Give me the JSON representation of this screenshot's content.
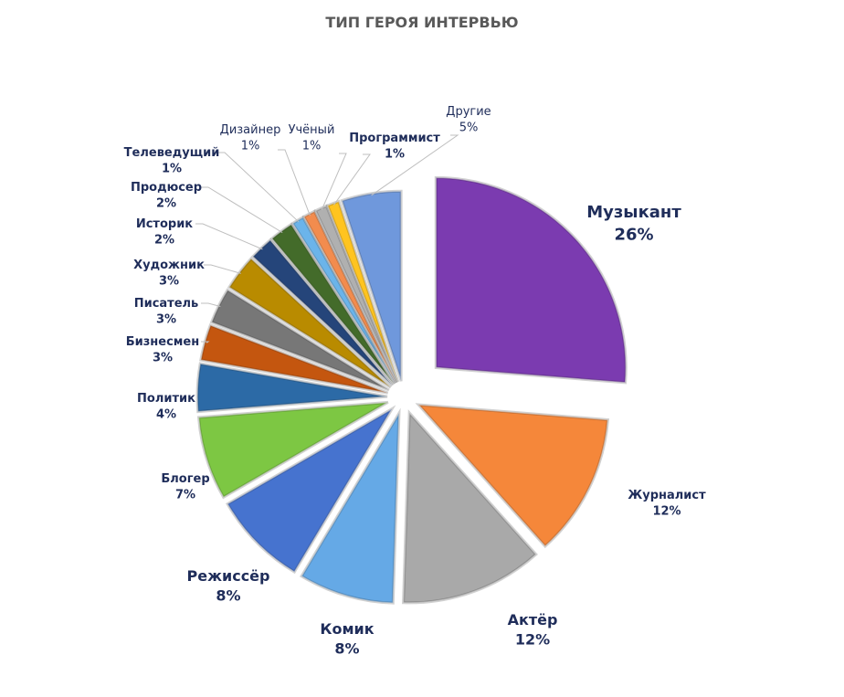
{
  "chart_data": {
    "type": "pie",
    "title": "ТИП ГЕРОЯ ИНТЕРВЬЮ",
    "slices": [
      {
        "label": "Музыкант",
        "value": 26,
        "color": "#7b3bb0"
      },
      {
        "label": "Журналист",
        "value": 12,
        "color": "#f5873a"
      },
      {
        "label": "Актёр",
        "value": 12,
        "color": "#a9a9a9"
      },
      {
        "label": "Комик",
        "value": 8,
        "color": "#65a9e6"
      },
      {
        "label": "Режиссёр",
        "value": 8,
        "color": "#4673cf"
      },
      {
        "label": "Блогер",
        "value": 7,
        "color": "#7dc743"
      },
      {
        "label": "Политик",
        "value": 4,
        "color": "#2c6aa6"
      },
      {
        "label": "Бизнесмен",
        "value": 3,
        "color": "#c4560f"
      },
      {
        "label": "Писатель",
        "value": 3,
        "color": "#777777"
      },
      {
        "label": "Художник",
        "value": 3,
        "color": "#b98b00"
      },
      {
        "label": "Историк",
        "value": 2,
        "color": "#25457a"
      },
      {
        "label": "Продюсер",
        "value": 2,
        "color": "#436b2a"
      },
      {
        "label": "Телеведущий",
        "value": 1,
        "color": "#6bb4ea"
      },
      {
        "label": "Дизайнер",
        "value": 1,
        "color": "#f28c4e"
      },
      {
        "label": "Учёный",
        "value": 1,
        "color": "#b0b0b0"
      },
      {
        "label": "Программист",
        "value": 1,
        "color": "#ffc420"
      },
      {
        "label": "Другие",
        "value": 5,
        "color": "#6f98dc"
      }
    ],
    "value_suffix": "%",
    "legend": "none",
    "data_labels": "outside with leader lines"
  }
}
